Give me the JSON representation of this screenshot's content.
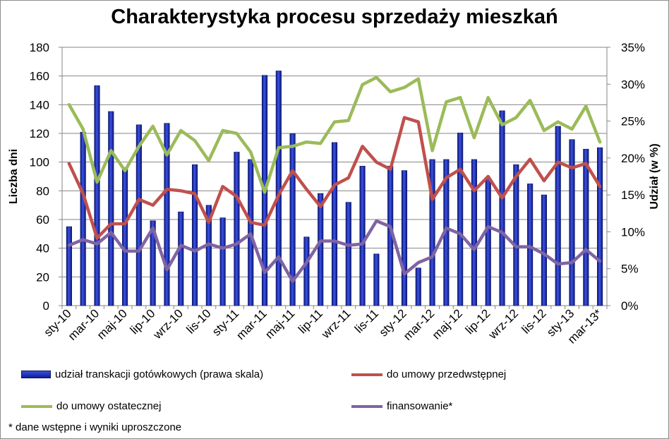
{
  "chart_data": {
    "type": "bar+line",
    "title": "Charakterystyka procesu sprzedaży mieszkań",
    "ylabel_left": "Liczba dni",
    "ylabel_right": "Udział (w %)",
    "ylim_left": [
      0,
      180
    ],
    "yticks_left": [
      "0",
      "20",
      "40",
      "60",
      "80",
      "100",
      "120",
      "140",
      "160",
      "180"
    ],
    "ylim_right": [
      0,
      35
    ],
    "yticks_right": [
      "0%",
      "5%",
      "10%",
      "15%",
      "20%",
      "25%",
      "30%",
      "35%"
    ],
    "categories": [
      "sty-10",
      "lut-10",
      "mar-10",
      "kwi-10",
      "maj-10",
      "cze-10",
      "lip-10",
      "sie-10",
      "wrz-10",
      "paź-10",
      "lis-10",
      "gru-10",
      "sty-11",
      "lut-11",
      "mar-11",
      "kwi-11",
      "maj-11",
      "cze-11",
      "lip-11",
      "sie-11",
      "wrz-11",
      "paź-11",
      "lis-11",
      "gru-11",
      "sty-12",
      "lut-12",
      "mar-12",
      "kwi-12",
      "maj-12",
      "cze-12",
      "lip-12",
      "sie-12",
      "wrz-12",
      "paź-12",
      "lis-12",
      "gru-12",
      "sty-13",
      "lut-13",
      "mar-13*"
    ],
    "tick_labels": [
      "sty-10",
      "mar-10",
      "maj-10",
      "lip-10",
      "wrz-10",
      "lis-10",
      "sty-11",
      "mar-11",
      "maj-11",
      "lip-11",
      "wrz-11",
      "lis-11",
      "sty-12",
      "mar-12",
      "maj-12",
      "lip-12",
      "wrz-12",
      "lis-12",
      "sty-13",
      "mar-13*"
    ],
    "series": [
      {
        "name": "udział transkacji gotówkowych (prawa skala)",
        "kind": "bar",
        "axis": "right",
        "color": "#1a2fb8",
        "values": [
          10.7,
          23.5,
          29.8,
          26.3,
          18.7,
          24.5,
          11.5,
          24.7,
          12.7,
          19.1,
          13.6,
          11.9,
          20.8,
          19.8,
          31.2,
          31.8,
          23.3,
          9.3,
          15.2,
          22.1,
          14.0,
          18.9,
          7.0,
          18.9,
          18.3,
          5.1,
          19.8,
          19.8,
          23.4,
          19.8,
          17.1,
          26.4,
          19.1,
          16.5,
          15.0,
          24.3,
          22.5,
          21.2,
          21.4
        ]
      },
      {
        "name": "do umowy przedwstępnej",
        "kind": "line",
        "axis": "left",
        "color": "#c0504d",
        "values": [
          99,
          78,
          47,
          57,
          57,
          74,
          70,
          81,
          80,
          78,
          58,
          83,
          76,
          58,
          56,
          77,
          94,
          81,
          69,
          84,
          89,
          111,
          100,
          95,
          131,
          128,
          74,
          89,
          95,
          80,
          90,
          75,
          90,
          102,
          87,
          100,
          96,
          99,
          83
        ]
      },
      {
        "name": "do umowy ostatecznej",
        "kind": "line",
        "axis": "left",
        "color": "#9bbb59",
        "values": [
          140,
          123,
          86,
          108,
          94,
          111,
          125,
          105,
          122,
          115,
          101,
          122,
          120,
          107,
          79,
          110,
          111,
          114,
          113,
          128,
          129,
          154,
          159,
          149,
          152,
          158,
          108,
          142,
          145,
          117,
          145,
          126,
          131,
          143,
          122,
          128,
          123,
          139,
          114
        ]
      },
      {
        "name": "finansowanie*",
        "kind": "line",
        "axis": "left",
        "color": "#8064a2",
        "values": [
          42,
          46,
          43,
          51,
          38,
          38,
          54,
          25,
          42,
          38,
          43,
          40,
          43,
          50,
          23,
          34,
          17,
          30,
          45,
          45,
          42,
          43,
          59,
          55,
          22,
          30,
          34,
          54,
          50,
          39,
          55,
          51,
          41,
          41,
          36,
          29,
          30,
          39,
          31
        ]
      }
    ],
    "grid": "horizontal",
    "legend": "bottom"
  },
  "footnote": "* dane wstępne i wyniki uproszczone"
}
